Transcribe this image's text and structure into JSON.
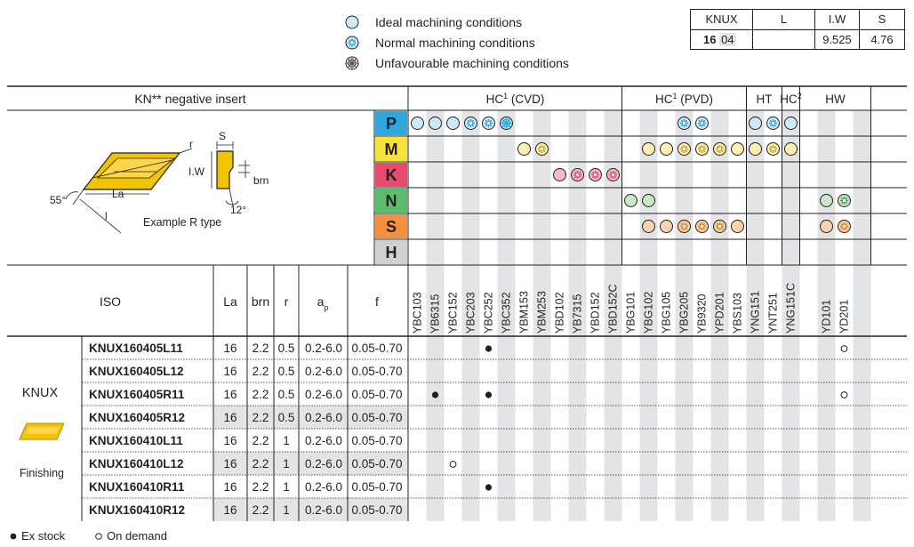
{
  "legend": {
    "ideal": "Ideal machining conditions",
    "normal": "Normal machining conditions",
    "unfavourable": "Unfavourable machining conditions"
  },
  "dimensions": {
    "headers": [
      "KNUX",
      "L",
      "I.W",
      "S"
    ],
    "code_bold": "16",
    "code_rest": "04",
    "values": [
      "",
      "9.525",
      "4.76"
    ]
  },
  "insert": {
    "title": "KN** negative insert",
    "labels": {
      "r": "r",
      "s": "S",
      "lw": "I.W",
      "brn": "brn",
      "la": "La",
      "l": "l",
      "angle55": "55°",
      "angle12": "12°",
      "example": "Example R type"
    }
  },
  "grade_groups": [
    {
      "name": "HC",
      "sup": "1",
      "suffix": " (CVD)"
    },
    {
      "name": "HC",
      "sup": "1",
      "suffix": " (PVD)"
    },
    {
      "name": "HT",
      "sup": "",
      "suffix": ""
    },
    {
      "name": "HC",
      "sup": "2",
      "suffix": ""
    },
    {
      "name": "HW",
      "sup": "",
      "suffix": ""
    }
  ],
  "materials": [
    {
      "letter": "P",
      "color": "#2aa8df"
    },
    {
      "letter": "M",
      "color": "#f5e33c"
    },
    {
      "letter": "K",
      "color": "#e94a6b"
    },
    {
      "letter": "N",
      "color": "#5cbc6c"
    },
    {
      "letter": "S",
      "color": "#f3913c"
    },
    {
      "letter": "H",
      "color": "#cfd0d2"
    }
  ],
  "grades": [
    "YBC103",
    "YB6315",
    "YBC152",
    "YBC203",
    "YBC252",
    "YBC352",
    "YBM153",
    "YBM253",
    "YBD102",
    "YB7315",
    "YBD152",
    "YBD152C",
    "YBG101",
    "YBG102",
    "YBG105",
    "YBG205",
    "YB9320",
    "YPD201",
    "YBS103",
    "YNG151",
    "YNT251",
    "YNG151C",
    "",
    "YD101",
    "YD201",
    ""
  ],
  "suitability": {
    "P": [
      1,
      1,
      1,
      2,
      2,
      3,
      0,
      0,
      0,
      0,
      0,
      0,
      0,
      0,
      0,
      2,
      2,
      0,
      0,
      1,
      2,
      1,
      0,
      0,
      0,
      0
    ],
    "M": [
      0,
      0,
      0,
      0,
      0,
      0,
      1,
      2,
      0,
      0,
      0,
      0,
      0,
      1,
      1,
      2,
      2,
      2,
      1,
      1,
      2,
      1,
      0,
      0,
      0,
      0
    ],
    "K": [
      0,
      0,
      0,
      0,
      0,
      0,
      0,
      0,
      1,
      2,
      2,
      2,
      0,
      0,
      0,
      0,
      0,
      0,
      0,
      0,
      0,
      0,
      0,
      0,
      0,
      0
    ],
    "N": [
      0,
      0,
      0,
      0,
      0,
      0,
      0,
      0,
      0,
      0,
      0,
      0,
      1,
      1,
      0,
      0,
      0,
      0,
      0,
      0,
      0,
      0,
      0,
      1,
      2,
      0
    ],
    "S": [
      0,
      0,
      0,
      0,
      0,
      0,
      0,
      0,
      0,
      0,
      0,
      0,
      0,
      1,
      1,
      2,
      2,
      2,
      1,
      0,
      0,
      0,
      0,
      1,
      2,
      0
    ],
    "H": [
      0,
      0,
      0,
      0,
      0,
      0,
      0,
      0,
      0,
      0,
      0,
      0,
      0,
      0,
      0,
      0,
      0,
      0,
      0,
      0,
      0,
      0,
      0,
      0,
      0,
      0
    ]
  },
  "columns": {
    "iso": "ISO",
    "la": "La",
    "brn": "brn",
    "r": "r",
    "ap": "a",
    "ap_sub": "p",
    "f": "f"
  },
  "family": {
    "name": "KNUX",
    "operation": "Finishing"
  },
  "rows": [
    {
      "iso": "KNUX160405L11",
      "la": "16",
      "brn": "2.2",
      "r": "0.5",
      "ap": "0.2-6.0",
      "f": "0.05-0.70",
      "marks": {
        "4": "stock",
        "24": "demand"
      }
    },
    {
      "iso": "KNUX160405L12",
      "la": "16",
      "brn": "2.2",
      "r": "0.5",
      "ap": "0.2-6.0",
      "f": "0.05-0.70",
      "marks": {}
    },
    {
      "iso": "KNUX160405R11",
      "la": "16",
      "brn": "2.2",
      "r": "0.5",
      "ap": "0.2-6.0",
      "f": "0.05-0.70",
      "marks": {
        "1": "stock",
        "4": "stock",
        "24": "demand"
      }
    },
    {
      "iso": "KNUX160405R12",
      "la": "16",
      "brn": "2.2",
      "r": "0.5",
      "ap": "0.2-6.0",
      "f": "0.05-0.70",
      "marks": {}
    },
    {
      "iso": "KNUX160410L11",
      "la": "16",
      "brn": "2.2",
      "r": "1",
      "ap": "0.2-6.0",
      "f": "0.05-0.70",
      "marks": {}
    },
    {
      "iso": "KNUX160410L12",
      "la": "16",
      "brn": "2.2",
      "r": "1",
      "ap": "0.2-6.0",
      "f": "0.05-0.70",
      "marks": {
        "2": "demand"
      }
    },
    {
      "iso": "KNUX160410R11",
      "la": "16",
      "brn": "2.2",
      "r": "1",
      "ap": "0.2-6.0",
      "f": "0.05-0.70",
      "marks": {
        "4": "stock"
      }
    },
    {
      "iso": "KNUX160410R12",
      "la": "16",
      "brn": "2.2",
      "r": "1",
      "ap": "0.2-6.0",
      "f": "0.05-0.70",
      "marks": {}
    }
  ],
  "footer": {
    "stock": "Ex stock",
    "demand": "On demand"
  },
  "colors": {
    "shade": "#e3e4e5",
    "rule": "#231f20",
    "yellow": "#f2c300"
  }
}
